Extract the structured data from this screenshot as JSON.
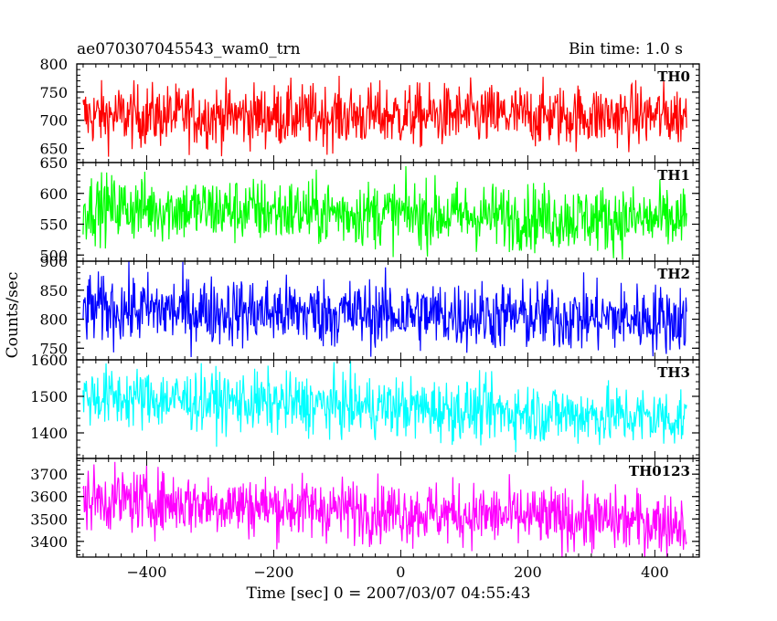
{
  "header": {
    "title": "ae070307045543_wam0_trn",
    "bin_time": "Bin time: 1.0 s"
  },
  "chart_data": {
    "type": "line",
    "xlabel": "Time [sec] 0 = 2007/03/07 04:55:43",
    "ylabel": "Counts/sec",
    "xlim": [
      -510,
      470
    ],
    "x_range": [
      -500,
      450
    ],
    "x_ticks": [
      -400,
      -200,
      0,
      200,
      400
    ],
    "grid": false,
    "panels": [
      {
        "name": "TH0",
        "color": "#ff0000",
        "ylim": [
          625,
          800
        ],
        "y_ticks": [
          650,
          700,
          750,
          800
        ],
        "mean": 708,
        "spread": 28,
        "trend": 0
      },
      {
        "name": "TH1",
        "color": "#00ff00",
        "ylim": [
          490,
          650
        ],
        "y_ticks": [
          500,
          550,
          600,
          650
        ],
        "mean": 578,
        "spread": 27,
        "trend": -22
      },
      {
        "name": "TH2",
        "color": "#0000ff",
        "ylim": [
          730,
          900
        ],
        "y_ticks": [
          750,
          800,
          850,
          900
        ],
        "mean": 818,
        "spread": 30,
        "trend": -18
      },
      {
        "name": "TH3",
        "color": "#00ffff",
        "ylim": [
          1330,
          1600
        ],
        "y_ticks": [
          1400,
          1500,
          1600
        ],
        "mean": 1500,
        "spread": 42,
        "trend": -60
      },
      {
        "name": "TH0123",
        "color": "#ff00ff",
        "ylim": [
          3330,
          3770
        ],
        "y_ticks": [
          3400,
          3500,
          3600,
          3700
        ],
        "mean": 3590,
        "spread": 70,
        "trend": -110
      }
    ]
  }
}
